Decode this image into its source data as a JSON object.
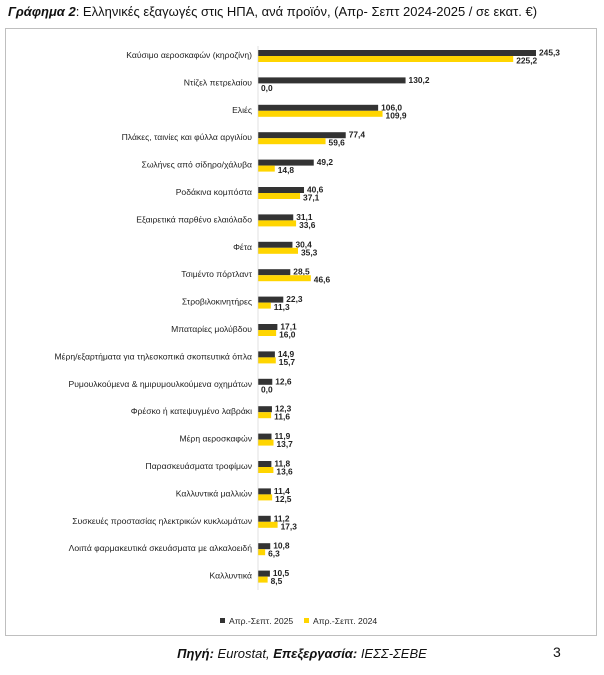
{
  "title": {
    "label": "Γράφημα 2",
    "text": ": Ελληνικές εξαγωγές στις ΗΠΑ, ανά προϊόν, (Απρ- Σεπτ 2024-2025 / σε εκατ. €)"
  },
  "chart_data": {
    "type": "bar",
    "orientation": "horizontal",
    "title": "Ελληνικές εξαγωγές στις ΗΠΑ, ανά προϊόν, (Απρ- Σεπτ 2024-2025 / σε εκατ. €)",
    "xlabel": "",
    "ylabel": "",
    "xlim": [
      0,
      245.3
    ],
    "grid": false,
    "legend_position": "bottom",
    "categories": [
      "Καύσιμο αεροσκαφών (κηροζίνη)",
      "Ντίζελ πετρελαίου",
      "Ελιές",
      "Πλάκες, ταινίες και φύλλα αργιλίου",
      "Σωλήνες από σίδηρο/χάλυβα",
      "Ροδάκινα κομπόστα",
      "Εξαιρετικά παρθένο ελαιόλαδο",
      "Φέτα",
      "Τσιμέντο πόρτλαντ",
      "Στροβιλοκινητήρες",
      "Μπαταρίες μολύβδου",
      "Μέρη/εξαρτήματα για τηλεσκοπικά σκοπευτικά όπλα",
      "Ρυμουλκούμενα & ημιρυμουλκούμενα οχημάτων",
      "Φρέσκο ή κατεψυγμένο λαβράκι",
      "Μέρη αεροσκαφών",
      "Παρασκευάσματα τροφίμων",
      "Καλλυντικά μαλλιών",
      "Συσκευές προστασίας ηλεκτρικών κυκλωμάτων",
      "Λοιπά φαρμακευτικά σκευάσματα με αλκαλοειδή",
      "Καλλυντικά"
    ],
    "series": [
      {
        "name": "Απρ.-Σεπτ. 2025",
        "color": "#333333",
        "values": [
          245.3,
          130.2,
          106.0,
          77.4,
          49.2,
          40.6,
          31.1,
          30.4,
          28.5,
          22.3,
          17.1,
          14.9,
          12.6,
          12.3,
          11.9,
          11.8,
          11.4,
          11.2,
          10.8,
          10.5
        ],
        "labels": [
          "245,3",
          "130,2",
          "106,0",
          "77,4",
          "49,2",
          "40,6",
          "31,1",
          "30,4",
          "28,5",
          "22,3",
          "17,1",
          "14,9",
          "12,6",
          "12,3",
          "11,9",
          "11,8",
          "11,4",
          "11,2",
          "10,8",
          "10,5"
        ]
      },
      {
        "name": "Απρ.-Σεπτ. 2024",
        "color": "#FFD500",
        "values": [
          225.2,
          0.0,
          109.9,
          59.6,
          14.8,
          37.1,
          33.6,
          35.3,
          46.6,
          11.3,
          16.0,
          15.7,
          0.0,
          11.6,
          13.7,
          13.6,
          12.5,
          17.3,
          6.3,
          8.5
        ],
        "labels": [
          "225,2",
          "0,0",
          "109,9",
          "59,6",
          "14,8",
          "37,1",
          "33,6",
          "35,3",
          "46,6",
          "11,3",
          "16,0",
          "15,7",
          "0,0",
          "11,6",
          "13,7",
          "13,6",
          "12,5",
          "17,3",
          "6,3",
          "8,5"
        ]
      }
    ]
  },
  "source": {
    "label1": "Πηγή:",
    "value1": " Eurostat, ",
    "label2": "Επεξεργασία:",
    "value2": " ΙΕΣΣ-ΣΕΒΕ"
  },
  "page_number": "3"
}
